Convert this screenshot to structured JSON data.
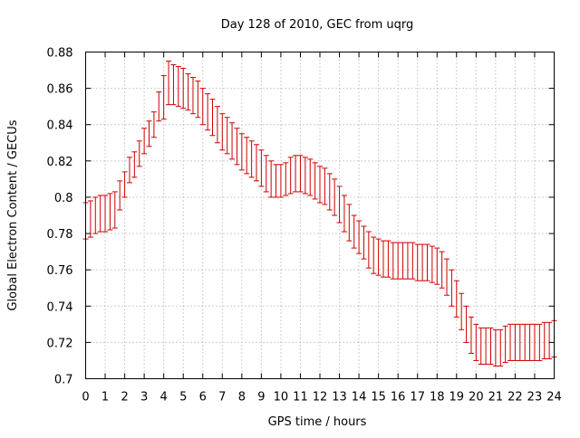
{
  "chart_data": {
    "type": "line",
    "title": "Day 128 of 2010, GEC from uqrg",
    "xlabel": "GPS time / hours",
    "ylabel": "Global Electron Content / GECUs",
    "xlim": [
      0,
      24
    ],
    "ylim": [
      0.7,
      0.88
    ],
    "x_ticks": [
      "0",
      "1",
      "2",
      "3",
      "4",
      "5",
      "6",
      "7",
      "8",
      "9",
      "10",
      "11",
      "12",
      "13",
      "14",
      "15",
      "16",
      "17",
      "18",
      "19",
      "20",
      "21",
      "22",
      "23",
      "24"
    ],
    "y_ticks": [
      "0.7",
      "0.72",
      "0.74",
      "0.76",
      "0.78",
      "0.8",
      "0.82",
      "0.84",
      "0.86",
      "0.88"
    ],
    "grid": true,
    "series_color": "#cc0000",
    "series": [
      {
        "style": "error bars",
        "x": [
          0,
          0.25,
          0.5,
          0.75,
          1,
          1.25,
          1.5,
          1.75,
          2,
          2.25,
          2.5,
          2.75,
          3,
          3.25,
          3.5,
          3.75,
          4,
          4.25,
          4.5,
          4.75,
          5,
          5.25,
          5.5,
          5.75,
          6,
          6.25,
          6.5,
          6.75,
          7,
          7.25,
          7.5,
          7.75,
          8,
          8.25,
          8.5,
          8.75,
          9,
          9.25,
          9.5,
          9.75,
          10,
          10.25,
          10.5,
          10.75,
          11,
          11.25,
          11.5,
          11.75,
          12,
          12.25,
          12.5,
          12.75,
          13,
          13.25,
          13.5,
          13.75,
          14,
          14.25,
          14.5,
          14.75,
          15,
          15.25,
          15.5,
          15.75,
          16,
          16.25,
          16.5,
          16.75,
          17,
          17.25,
          17.5,
          17.75,
          18,
          18.25,
          18.5,
          18.75,
          19,
          19.25,
          19.5,
          19.75,
          20,
          20.25,
          20.5,
          20.75,
          21,
          21.25,
          21.5,
          21.75,
          22,
          22.25,
          22.5,
          22.75,
          23,
          23.25,
          23.5,
          23.75,
          24
        ],
        "y": [
          0.787,
          0.788,
          0.79,
          0.791,
          0.791,
          0.792,
          0.793,
          0.801,
          0.807,
          0.815,
          0.818,
          0.824,
          0.831,
          0.835,
          0.84,
          0.85,
          0.855,
          0.863,
          0.862,
          0.861,
          0.86,
          0.858,
          0.856,
          0.854,
          0.85,
          0.847,
          0.844,
          0.84,
          0.836,
          0.834,
          0.831,
          0.828,
          0.825,
          0.823,
          0.821,
          0.819,
          0.816,
          0.813,
          0.81,
          0.809,
          0.809,
          0.81,
          0.812,
          0.813,
          0.813,
          0.812,
          0.811,
          0.809,
          0.807,
          0.806,
          0.803,
          0.8,
          0.796,
          0.791,
          0.786,
          0.781,
          0.778,
          0.775,
          0.771,
          0.768,
          0.767,
          0.766,
          0.766,
          0.765,
          0.765,
          0.765,
          0.765,
          0.765,
          0.764,
          0.764,
          0.764,
          0.763,
          0.762,
          0.76,
          0.756,
          0.75,
          0.744,
          0.737,
          0.73,
          0.724,
          0.72,
          0.718,
          0.718,
          0.718,
          0.717,
          0.717,
          0.719,
          0.72,
          0.72,
          0.72,
          0.72,
          0.72,
          0.72,
          0.72,
          0.721,
          0.721,
          0.722
        ],
        "error": [
          0.01,
          0.01,
          0.01,
          0.01,
          0.01,
          0.01,
          0.01,
          0.008,
          0.007,
          0.007,
          0.007,
          0.007,
          0.007,
          0.007,
          0.007,
          0.008,
          0.012,
          0.012,
          0.011,
          0.011,
          0.011,
          0.01,
          0.01,
          0.01,
          0.01,
          0.01,
          0.01,
          0.01,
          0.01,
          0.01,
          0.01,
          0.01,
          0.01,
          0.01,
          0.01,
          0.01,
          0.01,
          0.01,
          0.01,
          0.009,
          0.009,
          0.009,
          0.01,
          0.01,
          0.01,
          0.01,
          0.01,
          0.01,
          0.01,
          0.01,
          0.01,
          0.01,
          0.01,
          0.01,
          0.01,
          0.009,
          0.009,
          0.009,
          0.01,
          0.01,
          0.01,
          0.01,
          0.01,
          0.01,
          0.01,
          0.01,
          0.01,
          0.01,
          0.01,
          0.01,
          0.01,
          0.01,
          0.01,
          0.01,
          0.01,
          0.01,
          0.01,
          0.01,
          0.01,
          0.01,
          0.01,
          0.01,
          0.01,
          0.01,
          0.01,
          0.01,
          0.01,
          0.01,
          0.01,
          0.01,
          0.01,
          0.01,
          0.01,
          0.01,
          0.01,
          0.01,
          0.01
        ]
      }
    ]
  }
}
